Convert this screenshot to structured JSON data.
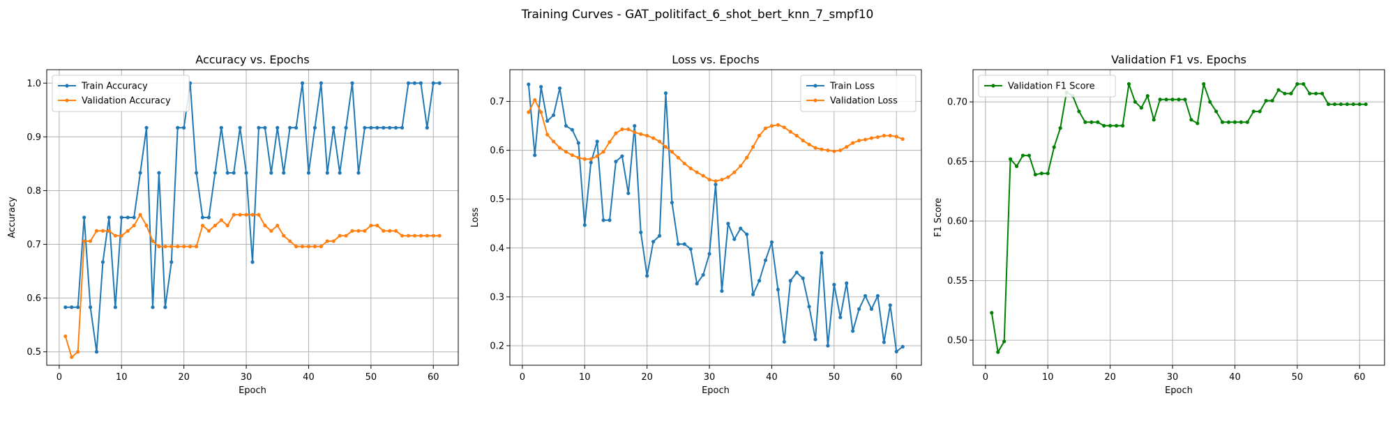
{
  "figure": {
    "suptitle": "Training Curves - GAT_politifact_6_shot_bert_knn_7_smpf10"
  },
  "colors": {
    "blue": "#1f77b4",
    "orange": "#ff7f0e",
    "green": "#008000",
    "grid": "#b0b0b0"
  },
  "chart_data": [
    {
      "type": "line",
      "title": "Accuracy vs. Epochs",
      "xlabel": "Epoch",
      "ylabel": "Accuracy",
      "xlim": [
        -2,
        64
      ],
      "ylim": [
        0.475,
        1.025
      ],
      "xticks": [
        0,
        10,
        20,
        30,
        40,
        50,
        60
      ],
      "yticks": [
        0.5,
        0.6,
        0.7,
        0.8,
        0.9,
        1.0
      ],
      "ytick_labels": [
        "0.5",
        "0.6",
        "0.7",
        "0.8",
        "0.9",
        "1.0"
      ],
      "grid": true,
      "legend_position": "upper left",
      "series": [
        {
          "name": "Train Accuracy",
          "color": "#1f77b4",
          "x": [
            1,
            2,
            3,
            4,
            5,
            6,
            7,
            8,
            9,
            10,
            11,
            12,
            13,
            14,
            15,
            16,
            17,
            18,
            19,
            20,
            21,
            22,
            23,
            24,
            25,
            26,
            27,
            28,
            29,
            30,
            31,
            32,
            33,
            34,
            35,
            36,
            37,
            38,
            39,
            40,
            41,
            42,
            43,
            44,
            45,
            46,
            47,
            48,
            49,
            50,
            51,
            52,
            53,
            54,
            55,
            56,
            57,
            58,
            59,
            60,
            61
          ],
          "y": [
            0.583,
            0.583,
            0.583,
            0.75,
            0.583,
            0.5,
            0.667,
            0.75,
            0.583,
            0.75,
            0.75,
            0.75,
            0.833,
            0.917,
            0.583,
            0.833,
            0.583,
            0.667,
            0.917,
            0.917,
            1.0,
            0.833,
            0.75,
            0.75,
            0.833,
            0.917,
            0.833,
            0.833,
            0.917,
            0.833,
            0.667,
            0.917,
            0.917,
            0.833,
            0.917,
            0.833,
            0.917,
            0.917,
            1.0,
            0.833,
            0.917,
            1.0,
            0.833,
            0.917,
            0.833,
            0.917,
            1.0,
            0.833,
            0.917,
            0.917,
            0.917,
            0.917,
            0.917,
            0.917,
            0.917,
            1.0,
            1.0,
            1.0,
            0.917,
            1.0,
            1.0
          ]
        },
        {
          "name": "Validation Accuracy",
          "color": "#ff7f0e",
          "x": [
            1,
            2,
            3,
            4,
            5,
            6,
            7,
            8,
            9,
            10,
            11,
            12,
            13,
            14,
            15,
            16,
            17,
            18,
            19,
            20,
            21,
            22,
            23,
            24,
            25,
            26,
            27,
            28,
            29,
            30,
            31,
            32,
            33,
            34,
            35,
            36,
            37,
            38,
            39,
            40,
            41,
            42,
            43,
            44,
            45,
            46,
            47,
            48,
            49,
            50,
            51,
            52,
            53,
            54,
            55,
            56,
            57,
            58,
            59,
            60,
            61
          ],
          "y": [
            0.529,
            0.49,
            0.5,
            0.706,
            0.706,
            0.725,
            0.725,
            0.725,
            0.716,
            0.716,
            0.725,
            0.735,
            0.755,
            0.735,
            0.706,
            0.696,
            0.696,
            0.696,
            0.696,
            0.696,
            0.696,
            0.696,
            0.735,
            0.725,
            0.735,
            0.745,
            0.735,
            0.755,
            0.755,
            0.755,
            0.755,
            0.755,
            0.735,
            0.725,
            0.735,
            0.716,
            0.706,
            0.696,
            0.696,
            0.696,
            0.696,
            0.696,
            0.706,
            0.706,
            0.716,
            0.716,
            0.725,
            0.725,
            0.725,
            0.735,
            0.735,
            0.725,
            0.725,
            0.725,
            0.716,
            0.716,
            0.716,
            0.716,
            0.716,
            0.716,
            0.716
          ]
        }
      ]
    },
    {
      "type": "line",
      "title": "Loss vs. Epochs",
      "xlabel": "Epoch",
      "ylabel": "Loss",
      "xlim": [
        -2,
        64
      ],
      "ylim": [
        0.16,
        0.765
      ],
      "xticks": [
        0,
        10,
        20,
        30,
        40,
        50,
        60
      ],
      "yticks": [
        0.2,
        0.3,
        0.4,
        0.5,
        0.6,
        0.7
      ],
      "ytick_labels": [
        "0.2",
        "0.3",
        "0.4",
        "0.5",
        "0.6",
        "0.7"
      ],
      "grid": true,
      "legend_position": "upper right",
      "series": [
        {
          "name": "Train Loss",
          "color": "#1f77b4",
          "x": [
            1,
            2,
            3,
            4,
            5,
            6,
            7,
            8,
            9,
            10,
            11,
            12,
            13,
            14,
            15,
            16,
            17,
            18,
            19,
            20,
            21,
            22,
            23,
            24,
            25,
            26,
            27,
            28,
            29,
            30,
            31,
            32,
            33,
            34,
            35,
            36,
            37,
            38,
            39,
            40,
            41,
            42,
            43,
            44,
            45,
            46,
            47,
            48,
            49,
            50,
            51,
            52,
            53,
            54,
            55,
            56,
            57,
            58,
            59,
            60,
            61
          ],
          "y": [
            0.735,
            0.59,
            0.73,
            0.66,
            0.672,
            0.727,
            0.65,
            0.642,
            0.615,
            0.447,
            0.575,
            0.618,
            0.457,
            0.457,
            0.577,
            0.588,
            0.512,
            0.65,
            0.432,
            0.343,
            0.413,
            0.425,
            0.717,
            0.493,
            0.408,
            0.408,
            0.398,
            0.327,
            0.345,
            0.388,
            0.53,
            0.312,
            0.45,
            0.418,
            0.44,
            0.428,
            0.305,
            0.333,
            0.375,
            0.412,
            0.315,
            0.208,
            0.333,
            0.35,
            0.338,
            0.28,
            0.213,
            0.39,
            0.2,
            0.325,
            0.258,
            0.328,
            0.23,
            0.275,
            0.302,
            0.275,
            0.302,
            0.207,
            0.283,
            0.188,
            0.198
          ]
        },
        {
          "name": "Validation Loss",
          "color": "#ff7f0e",
          "x": [
            1,
            2,
            3,
            4,
            5,
            6,
            7,
            8,
            9,
            10,
            11,
            12,
            13,
            14,
            15,
            16,
            17,
            18,
            19,
            20,
            21,
            22,
            23,
            24,
            25,
            26,
            27,
            28,
            29,
            30,
            31,
            32,
            33,
            34,
            35,
            36,
            37,
            38,
            39,
            40,
            41,
            42,
            43,
            44,
            45,
            46,
            47,
            48,
            49,
            50,
            51,
            52,
            53,
            54,
            55,
            56,
            57,
            58,
            59,
            60,
            61
          ],
          "y": [
            0.678,
            0.703,
            0.678,
            0.632,
            0.618,
            0.605,
            0.597,
            0.59,
            0.585,
            0.582,
            0.582,
            0.588,
            0.597,
            0.617,
            0.635,
            0.643,
            0.643,
            0.637,
            0.633,
            0.63,
            0.625,
            0.618,
            0.607,
            0.597,
            0.585,
            0.573,
            0.563,
            0.555,
            0.548,
            0.54,
            0.537,
            0.54,
            0.545,
            0.555,
            0.568,
            0.585,
            0.607,
            0.63,
            0.645,
            0.65,
            0.652,
            0.647,
            0.638,
            0.63,
            0.62,
            0.612,
            0.605,
            0.602,
            0.6,
            0.598,
            0.6,
            0.607,
            0.615,
            0.62,
            0.622,
            0.625,
            0.627,
            0.63,
            0.63,
            0.628,
            0.623
          ]
        }
      ]
    },
    {
      "type": "line",
      "title": "Validation F1 vs. Epochs",
      "xlabel": "Epoch",
      "ylabel": "F1 Score",
      "xlim": [
        -2,
        64
      ],
      "ylim": [
        0.479,
        0.727
      ],
      "xticks": [
        0,
        10,
        20,
        30,
        40,
        50,
        60
      ],
      "yticks": [
        0.5,
        0.55,
        0.6,
        0.65,
        0.7
      ],
      "ytick_labels": [
        "0.50",
        "0.55",
        "0.60",
        "0.65",
        "0.70"
      ],
      "grid": true,
      "legend_position": "upper left",
      "series": [
        {
          "name": "Validation F1 Score",
          "color": "#008000",
          "x": [
            1,
            2,
            3,
            4,
            5,
            6,
            7,
            8,
            9,
            10,
            11,
            12,
            13,
            14,
            15,
            16,
            17,
            18,
            19,
            20,
            21,
            22,
            23,
            24,
            25,
            26,
            27,
            28,
            29,
            30,
            31,
            32,
            33,
            34,
            35,
            36,
            37,
            38,
            39,
            40,
            41,
            42,
            43,
            44,
            45,
            46,
            47,
            48,
            49,
            50,
            51,
            52,
            53,
            54,
            55,
            56,
            57,
            58,
            59,
            60,
            61
          ],
          "y": [
            0.523,
            0.49,
            0.499,
            0.652,
            0.646,
            0.655,
            0.655,
            0.639,
            0.64,
            0.64,
            0.662,
            0.678,
            0.708,
            0.705,
            0.692,
            0.683,
            0.683,
            0.683,
            0.68,
            0.68,
            0.68,
            0.68,
            0.715,
            0.7,
            0.695,
            0.705,
            0.685,
            0.702,
            0.702,
            0.702,
            0.702,
            0.702,
            0.685,
            0.682,
            0.715,
            0.7,
            0.692,
            0.683,
            0.683,
            0.683,
            0.683,
            0.683,
            0.692,
            0.692,
            0.701,
            0.701,
            0.71,
            0.707,
            0.707,
            0.715,
            0.715,
            0.707,
            0.707,
            0.707,
            0.698,
            0.698,
            0.698,
            0.698,
            0.698,
            0.698,
            0.698
          ]
        }
      ]
    }
  ]
}
